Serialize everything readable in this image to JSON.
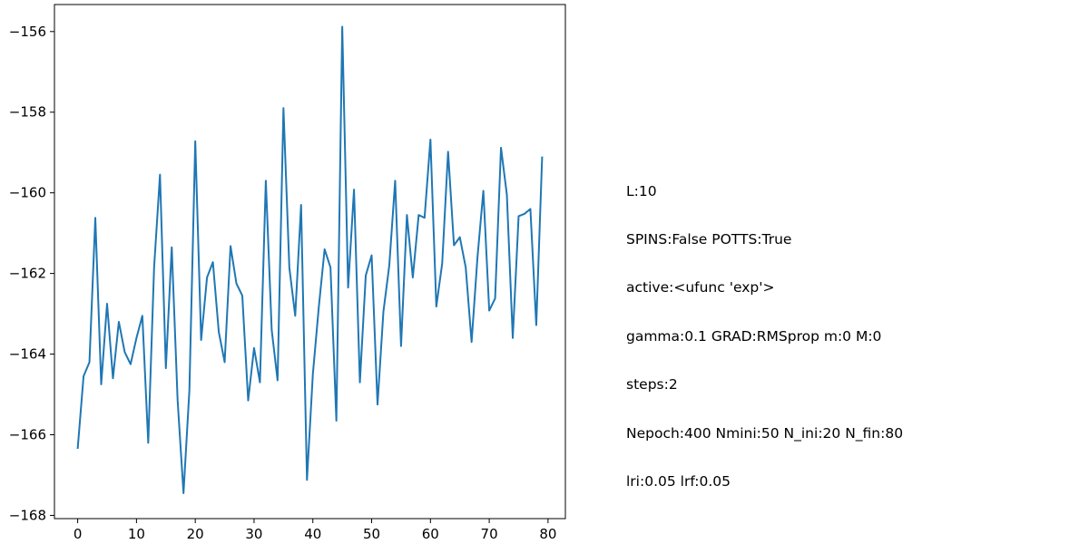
{
  "chart_data": {
    "type": "line",
    "title": "",
    "xlabel": "",
    "ylabel": "",
    "xlim": [
      -3.95,
      82.95
    ],
    "ylim": [
      -168.08,
      -155.33
    ],
    "xticks": [
      0,
      10,
      20,
      30,
      40,
      50,
      60,
      70,
      80
    ],
    "yticks": [
      -156,
      -158,
      -160,
      -162,
      -164,
      -166,
      -168
    ],
    "ytick_labels": [
      "−156",
      "−158",
      "−160",
      "−162",
      "−164",
      "−166",
      "−168"
    ],
    "grid": false,
    "line_color": "#1f77b4",
    "series": [
      {
        "x": [
          0,
          1,
          2,
          3,
          4,
          5,
          6,
          7,
          8,
          9,
          10,
          11,
          12,
          13,
          14,
          15,
          16,
          17,
          18,
          19,
          20,
          21,
          22,
          23,
          24,
          25,
          26,
          27,
          28,
          29,
          30,
          31,
          32,
          33,
          34,
          35,
          36,
          37,
          38,
          39,
          40,
          41,
          42,
          43,
          44,
          45,
          46,
          47,
          48,
          49,
          50,
          51,
          52,
          53,
          54,
          55,
          56,
          57,
          58,
          59,
          60,
          61,
          62,
          63,
          64,
          65,
          66,
          67,
          68,
          69,
          70,
          71,
          72,
          73,
          74,
          75,
          76,
          77,
          78,
          79
        ],
        "values": [
          -166.35,
          -164.55,
          -164.2,
          -160.62,
          -164.75,
          -162.75,
          -164.6,
          -163.2,
          -163.95,
          -164.25,
          -163.6,
          -163.05,
          -166.2,
          -161.85,
          -159.55,
          -164.35,
          -161.35,
          -165.15,
          -167.45,
          -164.9,
          -158.72,
          -163.65,
          -162.1,
          -161.72,
          -163.45,
          -164.2,
          -161.32,
          -162.25,
          -162.55,
          -165.15,
          -163.85,
          -164.7,
          -159.7,
          -163.4,
          -164.65,
          -157.9,
          -161.85,
          -163.05,
          -160.3,
          -167.12,
          -164.5,
          -162.85,
          -161.4,
          -161.85,
          -165.65,
          -155.88,
          -162.35,
          -159.92,
          -164.7,
          -162.05,
          -161.55,
          -165.25,
          -162.95,
          -161.8,
          -159.7,
          -163.8,
          -160.55,
          -162.1,
          -160.55,
          -160.62,
          -158.68,
          -162.82,
          -161.75,
          -158.98,
          -161.3,
          -161.1,
          -161.85,
          -163.7,
          -161.6,
          -159.95,
          -162.92,
          -162.62,
          -158.88,
          -160.05,
          -163.6,
          -160.58,
          -160.52,
          -160.4,
          -163.28,
          -159.1
        ]
      }
    ]
  },
  "info": {
    "lines": [
      "L:10",
      "SPINS:False POTTS:True",
      "active:<ufunc 'exp'>",
      "gamma:0.1 GRAD:RMSprop m:0 M:0",
      "steps:2",
      "Nepoch:400 Nmini:50 N_ini:20 N_fin:80",
      "lri:0.05 lrf:0.05"
    ]
  }
}
